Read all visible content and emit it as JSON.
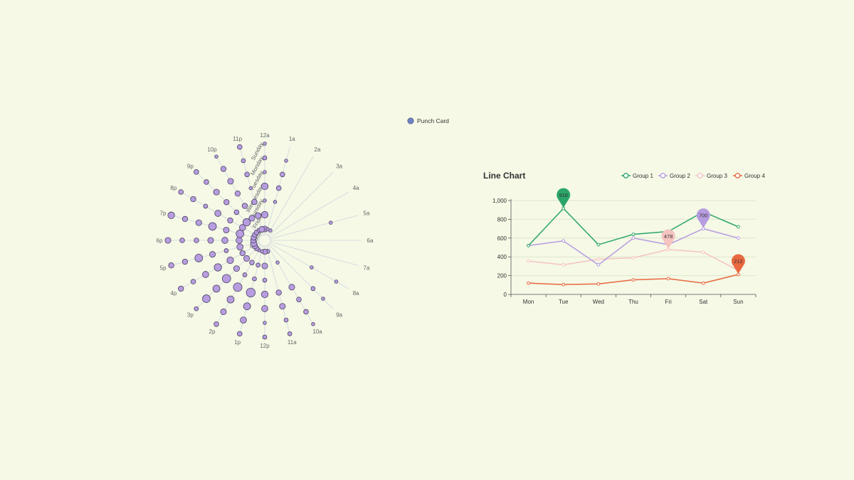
{
  "colors": {
    "background": "#f5f9e6",
    "punch_fill": "#b79ce0",
    "punch_stroke": "#4a4460",
    "legend_dot": "#6f84c7",
    "axis_line": "#cfd6df",
    "grid": "#dfe6c9",
    "text": "#666666"
  },
  "chart_data": [
    {
      "type": "scatter",
      "subtype": "polar-punch-card",
      "legend": [
        "Punch Card"
      ],
      "legend_placement": "top-right",
      "hours": [
        "12a",
        "1a",
        "2a",
        "3a",
        "4a",
        "5a",
        "6a",
        "7a",
        "8a",
        "9a",
        "10a",
        "11a",
        "12p",
        "1p",
        "2p",
        "3p",
        "4p",
        "5p",
        "6p",
        "7p",
        "8p",
        "9p",
        "10p",
        "11p"
      ],
      "days": [
        "Saturday",
        "Friday",
        "Thursday",
        "Wednesday",
        "Tuesday",
        "Monday",
        "Sunday"
      ],
      "values": [
        [
          5,
          1,
          1,
          0,
          0,
          0,
          0,
          0,
          0,
          0,
          0,
          2,
          4,
          1,
          1,
          3,
          4,
          6,
          4,
          4,
          3,
          3,
          2,
          5
        ],
        [
          7,
          0,
          0,
          0,
          0,
          0,
          0,
          0,
          0,
          0,
          1,
          0,
          5,
          2,
          3,
          5,
          4,
          6,
          6,
          10,
          6,
          9,
          5,
          5
        ],
        [
          1,
          1,
          0,
          0,
          0,
          0,
          0,
          0,
          0,
          0,
          0,
          0,
          2,
          2,
          2,
          5,
          7,
          2,
          6,
          5,
          4,
          3,
          4,
          4
        ],
        [
          7,
          3,
          0,
          0,
          0,
          0,
          0,
          0,
          1,
          0,
          5,
          4,
          7,
          14,
          13,
          12,
          9,
          5,
          5,
          10,
          6,
          4,
          4,
          1
        ],
        [
          1,
          3,
          0,
          0,
          0,
          1,
          0,
          0,
          0,
          2,
          3,
          5,
          6,
          8,
          8,
          8,
          6,
          10,
          3,
          5,
          2,
          5,
          5,
          3
        ],
        [
          2,
          1,
          0,
          0,
          0,
          0,
          0,
          0,
          1,
          1,
          3,
          2,
          1,
          6,
          5,
          10,
          3,
          4,
          3,
          4,
          4,
          3,
          4,
          2
        ],
        [
          1,
          0,
          0,
          0,
          0,
          0,
          0,
          0,
          0,
          0,
          1,
          2,
          2,
          3,
          3,
          2,
          4,
          4,
          5,
          7,
          3,
          3,
          1,
          3
        ]
      ]
    },
    {
      "type": "line",
      "title": "Line Chart",
      "legend_placement": "top-right",
      "categories": [
        "Mon",
        "Tue",
        "Wed",
        "Thu",
        "Fri",
        "Sat",
        "Sun"
      ],
      "ylim": [
        0,
        1000
      ],
      "yticks": [
        0,
        200,
        400,
        600,
        800,
        1000
      ],
      "ytick_labels": [
        "0",
        "200",
        "400",
        "600",
        "800",
        "1,000"
      ],
      "series": [
        {
          "name": "Group 1",
          "color": "#2ba56a",
          "values": [
            520,
            916,
            530,
            640,
            670,
            880,
            720
          ],
          "max_index": 1,
          "max_label": "916"
        },
        {
          "name": "Group 2",
          "color": "#b79ce0",
          "values": [
            520,
            570,
            315,
            600,
            530,
            700,
            600
          ],
          "max_index": 5,
          "max_label": "700"
        },
        {
          "name": "Group 3",
          "color": "#f5c3c0",
          "values": [
            355,
            315,
            375,
            390,
            478,
            450,
            255
          ],
          "max_index": 4,
          "max_label": "478"
        },
        {
          "name": "Group 4",
          "color": "#e8683f",
          "values": [
            120,
            105,
            112,
            155,
            168,
            120,
            212
          ],
          "max_index": 6,
          "max_label": "212"
        }
      ]
    }
  ]
}
